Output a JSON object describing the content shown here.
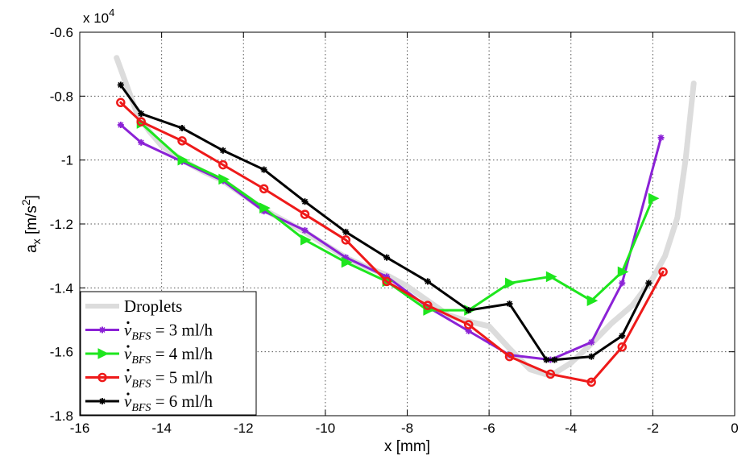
{
  "chart_data": {
    "type": "line",
    "xlabel": "x [mm]",
    "ylabel": "a_x [m/s^2]",
    "yscale_label": "x 10^4",
    "xlim": [
      -16,
      0
    ],
    "ylim": [
      -1.8,
      -0.6
    ],
    "xticks": [
      -16,
      -14,
      -12,
      -10,
      -8,
      -6,
      -4,
      -2,
      0
    ],
    "yticks": [
      -1.8,
      -1.6,
      -1.4,
      -1.2,
      -1.0,
      -0.8,
      -0.6
    ],
    "xtick_labels": [
      "-16",
      "-14",
      "-12",
      "-10",
      "-8",
      "-6",
      "-4",
      "-2",
      "0"
    ],
    "ytick_labels": [
      "-1.8",
      "-1.6",
      "-1.4",
      "-1.2",
      "-1",
      "-0.8",
      "-0.6"
    ],
    "grid": "dotted",
    "legend_position": "bottom-left",
    "series": [
      {
        "name": "Droplets",
        "color": "#dcdcdc",
        "marker": "none",
        "x": [
          -15.1,
          -14.9,
          -14.6,
          -14.3,
          -14.0,
          -13.5,
          -13.0,
          -12.5,
          -12.0,
          -11.5,
          -11.0,
          -10.5,
          -10.0,
          -9.5,
          -9.0,
          -8.5,
          -8.0,
          -7.5,
          -7.0,
          -6.5,
          -6.0,
          -5.5,
          -5.0,
          -4.5,
          -4.0,
          -3.5,
          -3.0,
          -2.5,
          -2.0,
          -1.7,
          -1.4,
          -1.2,
          -1.0
        ],
        "y": [
          -0.68,
          -0.75,
          -0.855,
          -0.91,
          -0.955,
          -1.0,
          -1.035,
          -1.065,
          -1.11,
          -1.155,
          -1.19,
          -1.225,
          -1.265,
          -1.305,
          -1.335,
          -1.36,
          -1.395,
          -1.44,
          -1.485,
          -1.505,
          -1.52,
          -1.59,
          -1.655,
          -1.675,
          -1.635,
          -1.575,
          -1.51,
          -1.455,
          -1.37,
          -1.3,
          -1.18,
          -1.0,
          -0.76
        ]
      },
      {
        "name": "v_BFS = 3 ml/h",
        "color": "#8b22d6",
        "marker": "star",
        "x": [
          -15.0,
          -14.5,
          -13.5,
          -12.5,
          -11.5,
          -10.5,
          -9.5,
          -8.5,
          -7.5,
          -6.5,
          -5.5,
          -4.5,
          -3.5,
          -2.75,
          -1.8
        ],
        "y": [
          -0.89,
          -0.945,
          -1.005,
          -1.065,
          -1.16,
          -1.22,
          -1.305,
          -1.365,
          -1.46,
          -1.535,
          -1.61,
          -1.625,
          -1.57,
          -1.385,
          -0.93
        ]
      },
      {
        "name": "v_BFS = 4 ml/h",
        "color": "#1ee61e",
        "marker": "triangle-right",
        "x": [
          -14.5,
          -13.5,
          -12.5,
          -11.5,
          -10.5,
          -9.5,
          -8.5,
          -7.5,
          -6.5,
          -5.5,
          -4.5,
          -3.5,
          -2.75,
          -2.0
        ],
        "y": [
          -0.885,
          -1.0,
          -1.06,
          -1.15,
          -1.25,
          -1.32,
          -1.38,
          -1.47,
          -1.47,
          -1.385,
          -1.365,
          -1.44,
          -1.35,
          -1.12
        ]
      },
      {
        "name": "v_BFS = 5 ml/h",
        "color": "#ee1a1a",
        "marker": "circle",
        "x": [
          -15.0,
          -14.5,
          -13.5,
          -12.5,
          -11.5,
          -10.5,
          -9.5,
          -8.5,
          -7.5,
          -6.5,
          -5.5,
          -4.5,
          -3.5,
          -2.75,
          -1.75
        ],
        "y": [
          -0.82,
          -0.88,
          -0.94,
          -1.015,
          -1.09,
          -1.17,
          -1.25,
          -1.38,
          -1.455,
          -1.515,
          -1.615,
          -1.67,
          -1.695,
          -1.585,
          -1.35
        ]
      },
      {
        "name": "v_BFS = 6 ml/h",
        "color": "#000000",
        "marker": "star",
        "x": [
          -15.0,
          -14.5,
          -13.5,
          -12.5,
          -11.5,
          -10.5,
          -9.5,
          -8.5,
          -7.5,
          -6.5,
          -5.5,
          -4.6,
          -4.4,
          -3.5,
          -2.75,
          -2.1
        ],
        "y": [
          -0.765,
          -0.855,
          -0.9,
          -0.97,
          -1.03,
          -1.13,
          -1.225,
          -1.305,
          -1.38,
          -1.47,
          -1.45,
          -1.625,
          -1.625,
          -1.615,
          -1.55,
          -1.385
        ]
      }
    ],
    "legend": [
      {
        "prefix": "Droplets",
        "sub": "",
        "suffix": ""
      },
      {
        "prefix": "v",
        "sub": "BFS",
        "suffix": " = 3 ml/h"
      },
      {
        "prefix": "v",
        "sub": "BFS",
        "suffix": " = 4 ml/h"
      },
      {
        "prefix": "v",
        "sub": "BFS",
        "suffix": " = 5 ml/h"
      },
      {
        "prefix": "v",
        "sub": "BFS",
        "suffix": " = 6 ml/h"
      }
    ]
  }
}
